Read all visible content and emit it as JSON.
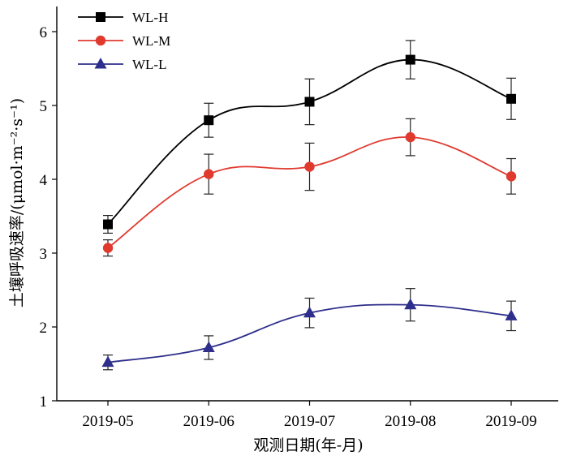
{
  "chart_data": {
    "type": "line",
    "title": "",
    "xlabel": "观测日期(年-月)",
    "ylabel": "土壤呼吸速率/(μmol·m⁻²·s⁻¹)",
    "ylim": [
      1,
      6.3
    ],
    "yticks": [
      1,
      2,
      3,
      4,
      5,
      6
    ],
    "categories": [
      "2019-05",
      "2019-06",
      "2019-07",
      "2019-08",
      "2019-09"
    ],
    "grid": false,
    "legend_position": "top-left",
    "series": [
      {
        "name": "WL-H",
        "color": "#000000",
        "marker": "square",
        "values": [
          3.39,
          4.8,
          5.05,
          5.62,
          5.09
        ],
        "errors": [
          0.12,
          0.23,
          0.31,
          0.26,
          0.28
        ]
      },
      {
        "name": "WL-M",
        "color": "#e03a2f",
        "marker": "circle",
        "values": [
          3.07,
          4.07,
          4.17,
          4.57,
          4.04
        ],
        "errors": [
          0.11,
          0.27,
          0.32,
          0.25,
          0.24
        ]
      },
      {
        "name": "WL-L",
        "color": "#2e2e8c",
        "marker": "triangle",
        "values": [
          1.52,
          1.72,
          2.19,
          2.3,
          2.15
        ],
        "errors": [
          0.1,
          0.16,
          0.2,
          0.22,
          0.2
        ]
      }
    ]
  }
}
